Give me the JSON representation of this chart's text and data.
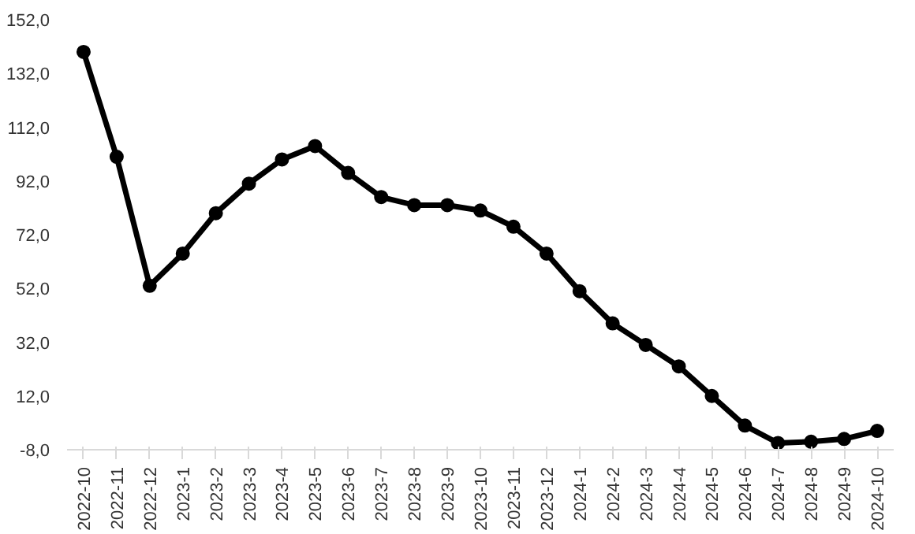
{
  "chart_data": {
    "type": "line",
    "categories": [
      "2022-10",
      "2022-11",
      "2022-12",
      "2023-1",
      "2023-2",
      "2023-3",
      "2023-4",
      "2023-5",
      "2023-6",
      "2023-7",
      "2023-8",
      "2023-9",
      "2023-10",
      "2023-11",
      "2023-12",
      "2024-1",
      "2024-2",
      "2024-3",
      "2024-4",
      "2024-5",
      "2024-6",
      "2024-7",
      "2024-8",
      "2024-9",
      "2024-10"
    ],
    "series": [
      {
        "color": "#000000",
        "values": [
          140,
          101,
          53,
          65,
          80,
          91,
          100,
          105,
          95,
          86,
          83,
          83,
          81,
          75,
          65,
          51,
          39,
          31,
          23,
          12,
          1,
          -5.5,
          -5,
          -4,
          -1
        ]
      }
    ],
    "ylim": [
      -8,
      152
    ],
    "yticks": [
      {
        "value": -8,
        "label": "-8,0"
      },
      {
        "value": 12,
        "label": "12,0"
      },
      {
        "value": 32,
        "label": "32,0"
      },
      {
        "value": 52,
        "label": "52,0"
      },
      {
        "value": 72,
        "label": "72,0"
      },
      {
        "value": 92,
        "label": "92,0"
      },
      {
        "value": 112,
        "label": "112,0"
      },
      {
        "value": 132,
        "label": "132,0"
      },
      {
        "value": 152,
        "label": "152,0"
      }
    ],
    "grid": false,
    "marker": "circle",
    "line_style": "solid"
  }
}
